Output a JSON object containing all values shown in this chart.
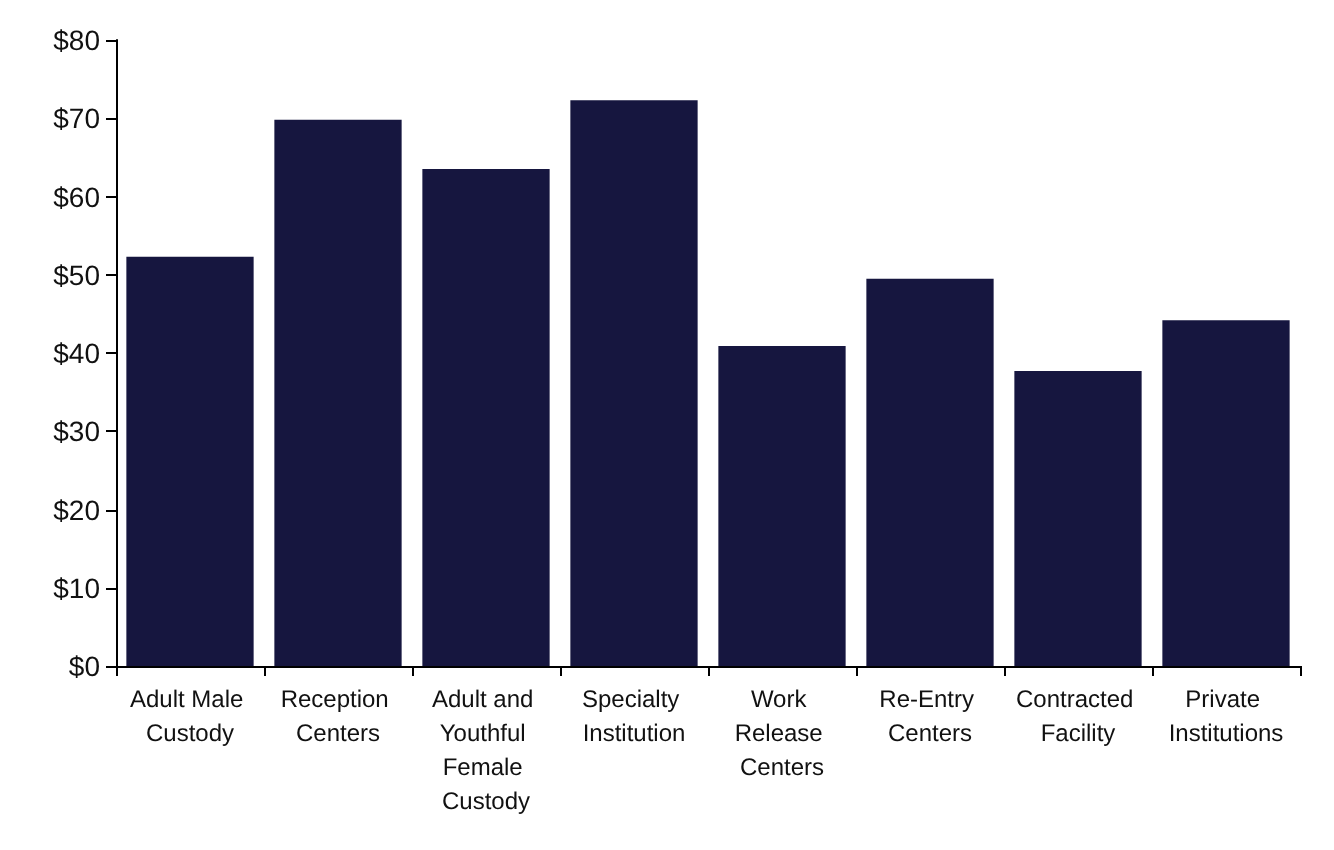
{
  "chart_data": {
    "type": "bar",
    "categories": [
      "Adult Male Custody",
      "Reception Centers",
      "Adult and Youthful Female Custody",
      "Specialty Institution",
      "Work Release Centers",
      "Re-Entry Centers",
      "Contracted Facility",
      "Private Institutions"
    ],
    "values": [
      52.3,
      69.8,
      63.5,
      72.3,
      40.9,
      49.5,
      37.7,
      44.2
    ],
    "color": "#16163f",
    "ylim": [
      0,
      80
    ],
    "yticks": [
      {
        "value": 0,
        "label": "$0"
      },
      {
        "value": 10,
        "label": "$10"
      },
      {
        "value": 20,
        "label": "$20"
      },
      {
        "value": 30,
        "label": "$30"
      },
      {
        "value": 40,
        "label": "$40"
      },
      {
        "value": 50,
        "label": "$50"
      },
      {
        "value": 60,
        "label": "$60"
      },
      {
        "value": 70,
        "label": "$70"
      },
      {
        "value": 80,
        "label": "$80"
      }
    ],
    "grid": false
  }
}
